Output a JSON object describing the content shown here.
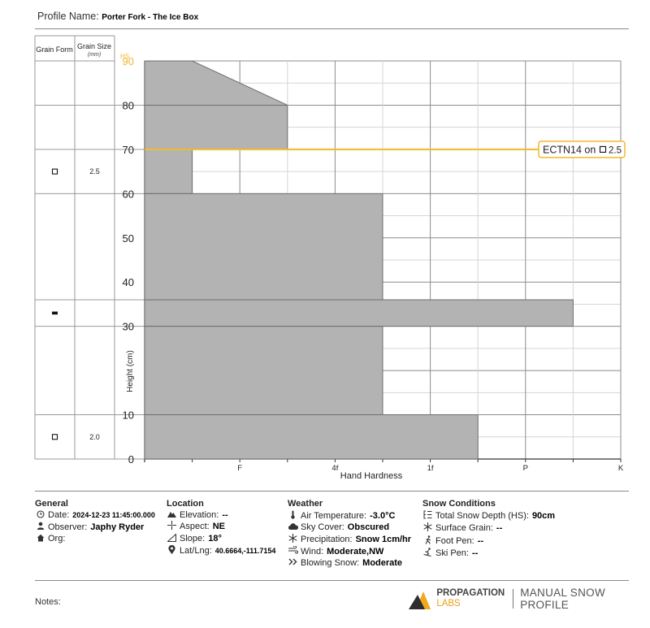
{
  "header": {
    "label": "Profile Name:",
    "profile_name": "Porter Fork - The Ice Box"
  },
  "grain_table": {
    "form_header": "Grain Form",
    "size_header": "Grain Size",
    "size_unit": "(mm)",
    "rows": [
      {
        "top": 90,
        "bottom": 80,
        "form_icon": "",
        "size": ""
      },
      {
        "top": 80,
        "bottom": 70,
        "form_icon": "",
        "size": ""
      },
      {
        "top": 70,
        "bottom": 60,
        "form_icon": "faceted-square-icon",
        "size": "2.5"
      },
      {
        "top": 60,
        "bottom": 36,
        "form_icon": "",
        "size": ""
      },
      {
        "top": 36,
        "bottom": 30,
        "form_icon": "ice-crust-icon",
        "size": ""
      },
      {
        "top": 30,
        "bottom": 10,
        "form_icon": "",
        "size": ""
      },
      {
        "top": 10,
        "bottom": 0,
        "form_icon": "faceted-square-icon",
        "size": "2.0"
      }
    ]
  },
  "chart_data": {
    "type": "bar",
    "orientation": "horizontal",
    "xlabel": "Hand Hardness",
    "ylabel": "Height (cm)",
    "hs_label": "HS",
    "hs_value": 90,
    "ylim": [
      0,
      90
    ],
    "y_ticks": [
      0,
      10,
      20,
      30,
      40,
      50,
      60,
      70,
      80,
      90
    ],
    "y_tick_labels": [
      "0",
      "10",
      "",
      "30",
      "40",
      "50",
      "60",
      "70",
      "80",
      "90"
    ],
    "x_categories": [
      "F",
      "4f",
      "1f",
      "P",
      "K"
    ],
    "hardness_max": 5,
    "grid": true,
    "layers": [
      {
        "bottom": 80,
        "top": 90,
        "hardness_bottom": 1.5,
        "hardness_top": 0.5
      },
      {
        "bottom": 70,
        "top": 80,
        "hardness_bottom": 1.5,
        "hardness_top": 1.5
      },
      {
        "bottom": 60,
        "top": 70,
        "hardness_bottom": 0.5,
        "hardness_top": 0.5
      },
      {
        "bottom": 36,
        "top": 60,
        "hardness_bottom": 2.5,
        "hardness_top": 2.5
      },
      {
        "bottom": 30,
        "top": 36,
        "hardness_bottom": 4.5,
        "hardness_top": 4.5
      },
      {
        "bottom": 10,
        "top": 30,
        "hardness_bottom": 2.5,
        "hardness_top": 2.5
      },
      {
        "bottom": 0,
        "top": 10,
        "hardness_bottom": 3.5,
        "hardness_top": 3.5
      }
    ],
    "test_results": [
      {
        "height": 70,
        "label": "ECTN14 on",
        "grain_icon": "faceted-square-icon",
        "size": "2.5"
      }
    ],
    "colors": {
      "layer": "#b3b3b3",
      "layer_stroke": "#6e6e6e",
      "test_line": "#f4b82a",
      "hs": "#f2b62c",
      "grid": "#d6d6d6"
    }
  },
  "general": {
    "title": "General",
    "date_label": "Date:",
    "date": "2024-12-23 11:45:00.000",
    "observer_label": "Observer:",
    "observer": "Japhy Ryder",
    "org_label": "Org:",
    "org": ""
  },
  "location": {
    "title": "Location",
    "elevation_label": "Elevation:",
    "elevation": "--",
    "aspect_label": "Aspect:",
    "aspect": "NE",
    "slope_label": "Slope:",
    "slope": "18°",
    "latlng_label": "Lat/Lng:",
    "latlng": "40.6664,-111.7154"
  },
  "weather": {
    "title": "Weather",
    "air_temp_label": "Air Temperature:",
    "air_temp": "-3.0°C",
    "sky_label": "Sky Cover:",
    "sky": "Obscured",
    "precip_label": "Precipitation:",
    "precip": "Snow 1cm/hr",
    "wind_label": "Wind:",
    "wind": "Moderate,NW",
    "blowing_label": "Blowing Snow:",
    "blowing": "Moderate"
  },
  "snow": {
    "title": "Snow Conditions",
    "hs_label": "Total Snow Depth (HS):",
    "hs": "90cm",
    "surface_label": "Surface Grain:",
    "surface": "--",
    "foot_label": "Foot Pen:",
    "foot": "--",
    "ski_label": "Ski Pen:",
    "ski": "--"
  },
  "notes": {
    "label": "Notes:"
  },
  "brand": {
    "line1": "PROPAGATION",
    "line2": "LABS",
    "product": "MANUAL SNOW PROFILE"
  }
}
